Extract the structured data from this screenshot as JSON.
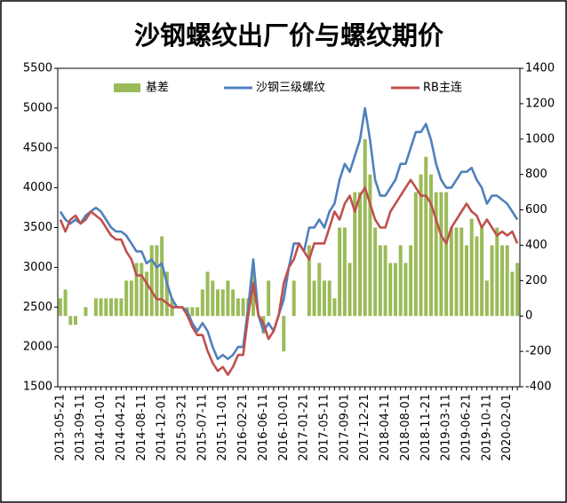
{
  "chart_data": {
    "type": "bar-line",
    "title": "沙钢螺纹出厂价与螺纹期价",
    "categories": [
      "2013-05-21",
      null,
      null,
      null,
      "2013-09-11",
      null,
      null,
      null,
      "2014-01-01",
      null,
      null,
      null,
      "2014-04-21",
      null,
      null,
      null,
      "2014-08-11",
      null,
      null,
      null,
      "2014-12-01",
      null,
      null,
      null,
      "2015-03-21",
      null,
      null,
      null,
      "2015-07-11",
      null,
      null,
      null,
      "2015-11-01",
      null,
      null,
      null,
      "2016-02-21",
      null,
      null,
      null,
      "2016-06-11",
      null,
      null,
      null,
      "2016-10-01",
      null,
      null,
      null,
      "2017-01-21",
      null,
      null,
      null,
      "2017-05-11",
      null,
      null,
      null,
      "2017-09-01",
      null,
      null,
      null,
      "2017-12-21",
      null,
      null,
      null,
      "2018-04-11",
      null,
      null,
      null,
      "2018-08-01",
      null,
      null,
      null,
      "2018-11-21",
      null,
      null,
      null,
      "2019-03-11",
      null,
      null,
      null,
      "2019-06-21",
      null,
      null,
      null,
      "2019-10-11",
      null,
      null,
      null,
      "2020-02-01",
      null,
      null
    ],
    "series": [
      {
        "name": "基差",
        "type": "bar",
        "axis": "y2",
        "color": "#9bbb59",
        "values": [
          100,
          150,
          -50,
          -50,
          0,
          50,
          0,
          100,
          100,
          100,
          100,
          100,
          100,
          200,
          200,
          300,
          300,
          250,
          400,
          400,
          450,
          250,
          100,
          0,
          0,
          50,
          50,
          50,
          150,
          250,
          200,
          150,
          150,
          200,
          150,
          100,
          100,
          100,
          300,
          0,
          -100,
          200,
          0,
          0,
          -200,
          0,
          200,
          0,
          0,
          400,
          200,
          300,
          200,
          200,
          100,
          500,
          500,
          300,
          700,
          700,
          1000,
          800,
          500,
          400,
          400,
          300,
          300,
          400,
          300,
          400,
          700,
          800,
          900,
          800,
          700,
          700,
          700,
          500,
          500,
          500,
          400,
          550,
          450,
          500,
          200,
          400,
          500,
          400,
          400,
          250,
          300
        ]
      },
      {
        "name": "沙钢三级螺纹",
        "type": "line",
        "color": "#4f81bd",
        "values": [
          3700,
          3600,
          3550,
          3600,
          3550,
          3650,
          3700,
          3750,
          3700,
          3600,
          3500,
          3450,
          3450,
          3400,
          3300,
          3200,
          3200,
          3050,
          3100,
          3000,
          3050,
          2800,
          2600,
          2500,
          2500,
          2450,
          2300,
          2200,
          2300,
          2200,
          2000,
          1850,
          1900,
          1850,
          1900,
          2000,
          2000,
          2500,
          3100,
          2400,
          2200,
          2300,
          2200,
          2400,
          2600,
          3000,
          3300,
          3300,
          3200,
          3500,
          3500,
          3600,
          3500,
          3700,
          3800,
          4100,
          4300,
          4200,
          4400,
          4600,
          5000,
          4600,
          4100,
          3900,
          3900,
          4000,
          4100,
          4300,
          4300,
          4500,
          4700,
          4700,
          4800,
          4600,
          4300,
          4100,
          4000,
          4000,
          4100,
          4200,
          4200,
          4250,
          4100,
          4000,
          3800,
          3900,
          3900,
          3850,
          3800,
          3700,
          3600
        ]
      },
      {
        "name": "RB主连",
        "type": "line",
        "color": "#c0504d",
        "values": [
          3600,
          3450,
          3600,
          3650,
          3550,
          3600,
          3700,
          3650,
          3600,
          3500,
          3400,
          3350,
          3350,
          3200,
          3100,
          2900,
          2900,
          2800,
          2700,
          2600,
          2600,
          2550,
          2500,
          2500,
          2500,
          2400,
          2250,
          2150,
          2150,
          1950,
          1800,
          1700,
          1750,
          1650,
          1750,
          1900,
          1900,
          2400,
          2800,
          2400,
          2300,
          2100,
          2200,
          2400,
          2800,
          3000,
          3100,
          3300,
          3200,
          3100,
          3300,
          3300,
          3300,
          3500,
          3700,
          3600,
          3800,
          3900,
          3700,
          3900,
          4000,
          3800,
          3600,
          3500,
          3500,
          3700,
          3800,
          3900,
          4000,
          4100,
          4000,
          3900,
          3900,
          3800,
          3600,
          3400,
          3300,
          3500,
          3600,
          3700,
          3800,
          3700,
          3650,
          3500,
          3600,
          3500,
          3400,
          3450,
          3400,
          3450,
          3300
        ]
      }
    ],
    "ylim": [
      1500,
      5500
    ],
    "yticks": [
      1500,
      2000,
      2500,
      3000,
      3500,
      4000,
      4500,
      5000,
      5500
    ],
    "y2lim": [
      -400,
      1400
    ],
    "y2ticks": [
      -400,
      -200,
      0,
      200,
      400,
      600,
      800,
      1000,
      1200,
      1400
    ],
    "grid": false,
    "legend": "top"
  }
}
